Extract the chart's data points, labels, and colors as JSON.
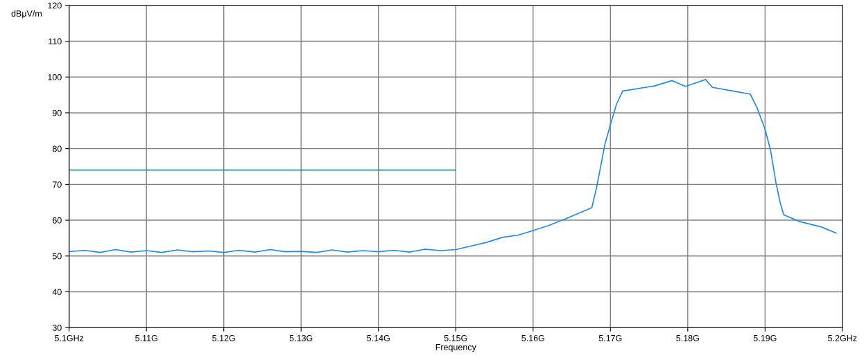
{
  "chart_data": {
    "type": "line",
    "xlabel": "Frequency",
    "ylabel": "dBμV/m",
    "xlim": [
      5.1,
      5.2
    ],
    "xticks": [
      {
        "value": 5.1,
        "label": "5.1GHz"
      },
      {
        "value": 5.11,
        "label": "5.11G"
      },
      {
        "value": 5.12,
        "label": "5.12G"
      },
      {
        "value": 5.13,
        "label": "5.13G"
      },
      {
        "value": 5.14,
        "label": "5.14G"
      },
      {
        "value": 5.15,
        "label": "5.15G"
      },
      {
        "value": 5.16,
        "label": "5.16G"
      },
      {
        "value": 5.17,
        "label": "5.17G"
      },
      {
        "value": 5.18,
        "label": "5.18G"
      },
      {
        "value": 5.19,
        "label": "5.19G"
      },
      {
        "value": 5.2,
        "label": "5.2GHz"
      }
    ],
    "ylim": [
      30,
      120
    ],
    "yticks": [
      30,
      40,
      50,
      60,
      70,
      80,
      90,
      100,
      110,
      120
    ],
    "grid": true,
    "marker": "none",
    "line_style": "solid",
    "series": [
      {
        "color": "#1e88f0",
        "x": [
          5.1,
          5.102,
          5.104,
          5.106,
          5.108,
          5.11,
          5.112,
          5.114,
          5.116,
          5.118,
          5.12,
          5.122,
          5.124,
          5.126,
          5.128,
          5.13,
          5.132,
          5.134,
          5.136,
          5.138,
          5.14,
          5.142,
          5.144,
          5.146,
          5.148,
          5.15,
          5.152,
          5.154,
          5.156,
          5.158,
          5.16,
          5.162,
          5.1641,
          5.1676,
          5.1682,
          5.1688,
          5.1693,
          5.17,
          5.1708,
          5.1716,
          5.1728,
          5.1742,
          5.1757,
          5.178,
          5.1797,
          5.1815,
          5.1823,
          5.1832,
          5.1858,
          5.1881,
          5.189,
          5.19,
          5.1907,
          5.1914,
          5.1919,
          5.1924,
          5.1945,
          5.1973,
          5.1992
        ],
        "values": [
          51.2,
          51.6,
          51.0,
          51.8,
          51.1,
          51.5,
          51.0,
          51.7,
          51.2,
          51.4,
          51.0,
          51.6,
          51.1,
          51.8,
          51.2,
          51.3,
          51.0,
          51.7,
          51.1,
          51.5,
          51.2,
          51.6,
          51.1,
          51.9,
          51.5,
          51.8,
          52.8,
          53.8,
          55.2,
          55.8,
          57.1,
          58.5,
          60.3,
          63.5,
          69.0,
          75.7,
          81.3,
          86.7,
          92.5,
          96.1,
          96.5,
          97.0,
          97.5,
          99.0,
          97.4,
          98.7,
          99.3,
          97.1,
          96.1,
          95.2,
          91.2,
          85.4,
          79.6,
          70.6,
          65.4,
          61.5,
          59.6,
          58.1,
          56.4
        ]
      },
      {
        "color": "#2a8c8c",
        "x": [
          5.1,
          5.15
        ],
        "values": [
          74,
          74
        ]
      }
    ]
  }
}
